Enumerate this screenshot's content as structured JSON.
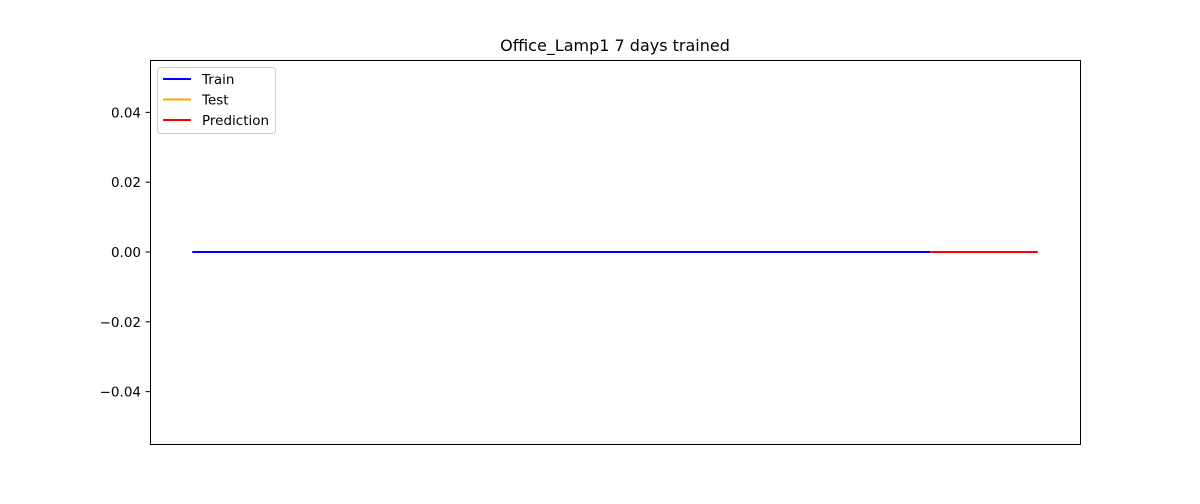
{
  "chart_data": {
    "type": "line",
    "title": "Office_Lamp1 7 days trained",
    "xlabel": "",
    "ylabel": "",
    "xticks_visible": false,
    "ylim": [
      -0.055,
      0.055
    ],
    "xlim": [
      -0.05,
      1.05
    ],
    "y_ticks": [
      {
        "value": 0.04,
        "label": "0.04"
      },
      {
        "value": 0.02,
        "label": "0.02"
      },
      {
        "value": 0.0,
        "label": "0.00"
      },
      {
        "value": -0.02,
        "label": "−0.02"
      },
      {
        "value": -0.04,
        "label": "−0.04"
      }
    ],
    "grid": false,
    "legend_position": "top-left",
    "series": [
      {
        "name": "Train",
        "color": "#0000ff",
        "x": [
          0.0,
          0.873
        ],
        "y": [
          0.0,
          0.0
        ]
      },
      {
        "name": "Test",
        "color": "#ffa500",
        "x": [
          0.873,
          1.0
        ],
        "y": [
          0.0,
          0.0
        ]
      },
      {
        "name": "Prediction",
        "color": "#ff0000",
        "x": [
          0.873,
          1.0
        ],
        "y": [
          0.0,
          0.0
        ]
      }
    ]
  }
}
